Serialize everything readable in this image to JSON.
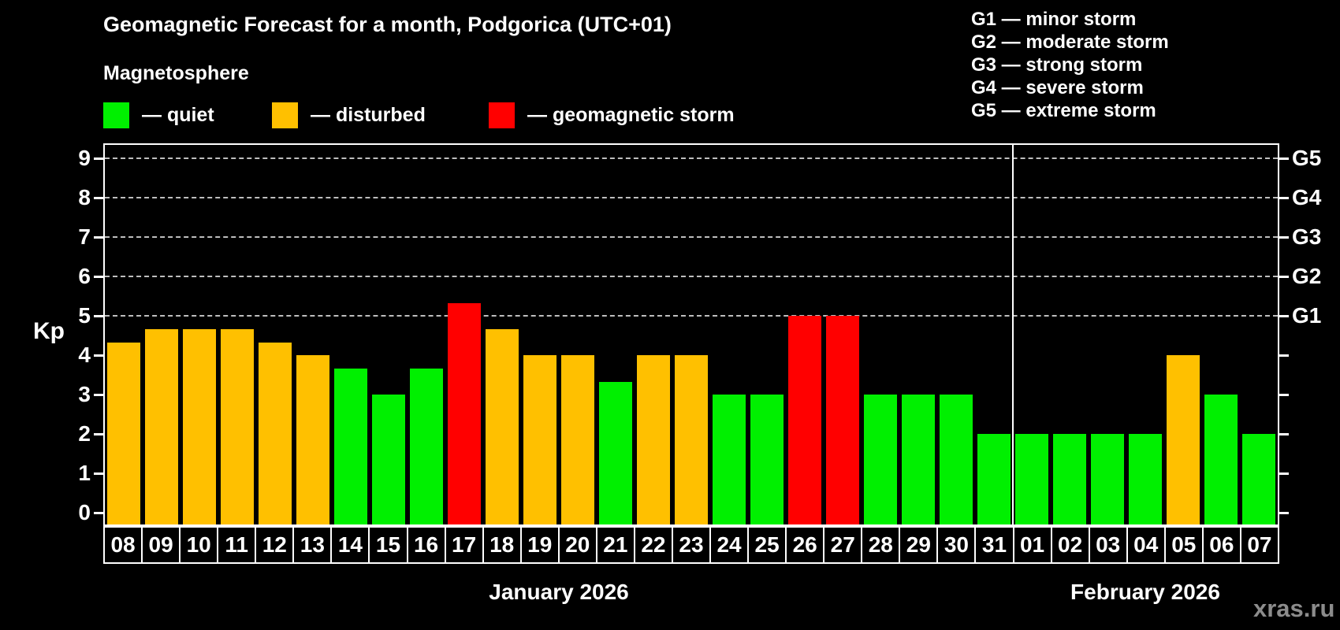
{
  "title": "Geomagnetic Forecast for a month, Podgorica (UTC+01)",
  "subtitle": "Magnetosphere",
  "kp_axis_label": "Kp",
  "watermark": "xras.ru",
  "colors": {
    "background": "#000000",
    "axis": "#FFFFFF",
    "grid": "#BEBEBE",
    "text": "#FFFFFF",
    "watermark": "#8C8C8C",
    "quiet": "#00F000",
    "disturbed": "#FFC000",
    "storm": "#FF0000"
  },
  "legend": [
    {
      "key": "quiet",
      "label": "— quiet",
      "color": "#00F000"
    },
    {
      "key": "disturbed",
      "label": "— disturbed",
      "color": "#FFC000"
    },
    {
      "key": "storm",
      "label": "— geomagnetic storm",
      "color": "#FF0000"
    }
  ],
  "storm_scale": [
    "G1 — minor storm",
    "G2 — moderate storm",
    "G3 — strong storm",
    "G4 — severe storm",
    "G5 — extreme storm"
  ],
  "chart_data": {
    "type": "bar",
    "ylabel": "Kp",
    "ylim": [
      -0.35,
      9.4
    ],
    "y_ticks": [
      0,
      1,
      2,
      3,
      4,
      5,
      6,
      7,
      8,
      9
    ],
    "grid": {
      "kp_levels": [
        5,
        6,
        7,
        8,
        9
      ],
      "style": "dashed",
      "color": "#BEBEBE"
    },
    "right_axis": [
      {
        "kp": 5,
        "label": "G1"
      },
      {
        "kp": 6,
        "label": "G2"
      },
      {
        "kp": 7,
        "label": "G3"
      },
      {
        "kp": 8,
        "label": "G4"
      },
      {
        "kp": 9,
        "label": "G5"
      }
    ],
    "months": [
      {
        "label": "January 2026",
        "start_index": 0,
        "day_count": 24
      },
      {
        "label": "February 2026",
        "start_index": 24,
        "day_count": 7
      }
    ],
    "bars": [
      {
        "day": "08",
        "month": "January 2026",
        "kp": 4.33,
        "status": "disturbed"
      },
      {
        "day": "09",
        "month": "January 2026",
        "kp": 4.67,
        "status": "disturbed"
      },
      {
        "day": "10",
        "month": "January 2026",
        "kp": 4.67,
        "status": "disturbed"
      },
      {
        "day": "11",
        "month": "January 2026",
        "kp": 4.67,
        "status": "disturbed"
      },
      {
        "day": "12",
        "month": "January 2026",
        "kp": 4.33,
        "status": "disturbed"
      },
      {
        "day": "13",
        "month": "January 2026",
        "kp": 4.0,
        "status": "disturbed"
      },
      {
        "day": "14",
        "month": "January 2026",
        "kp": 3.67,
        "status": "quiet"
      },
      {
        "day": "15",
        "month": "January 2026",
        "kp": 3.0,
        "status": "quiet"
      },
      {
        "day": "16",
        "month": "January 2026",
        "kp": 3.67,
        "status": "quiet"
      },
      {
        "day": "17",
        "month": "January 2026",
        "kp": 5.33,
        "status": "storm"
      },
      {
        "day": "18",
        "month": "January 2026",
        "kp": 4.67,
        "status": "disturbed"
      },
      {
        "day": "19",
        "month": "January 2026",
        "kp": 4.0,
        "status": "disturbed"
      },
      {
        "day": "20",
        "month": "January 2026",
        "kp": 4.0,
        "status": "disturbed"
      },
      {
        "day": "21",
        "month": "January 2026",
        "kp": 3.33,
        "status": "quiet"
      },
      {
        "day": "22",
        "month": "January 2026",
        "kp": 4.0,
        "status": "disturbed"
      },
      {
        "day": "23",
        "month": "January 2026",
        "kp": 4.0,
        "status": "disturbed"
      },
      {
        "day": "24",
        "month": "January 2026",
        "kp": 3.0,
        "status": "quiet"
      },
      {
        "day": "25",
        "month": "January 2026",
        "kp": 3.0,
        "status": "quiet"
      },
      {
        "day": "26",
        "month": "January 2026",
        "kp": 5.0,
        "status": "storm"
      },
      {
        "day": "27",
        "month": "January 2026",
        "kp": 5.0,
        "status": "storm"
      },
      {
        "day": "28",
        "month": "January 2026",
        "kp": 3.0,
        "status": "quiet"
      },
      {
        "day": "29",
        "month": "January 2026",
        "kp": 3.0,
        "status": "quiet"
      },
      {
        "day": "30",
        "month": "January 2026",
        "kp": 3.0,
        "status": "quiet"
      },
      {
        "day": "31",
        "month": "January 2026",
        "kp": 2.0,
        "status": "quiet"
      },
      {
        "day": "01",
        "month": "February 2026",
        "kp": 2.0,
        "status": "quiet"
      },
      {
        "day": "02",
        "month": "February 2026",
        "kp": 2.0,
        "status": "quiet"
      },
      {
        "day": "03",
        "month": "February 2026",
        "kp": 2.0,
        "status": "quiet"
      },
      {
        "day": "04",
        "month": "February 2026",
        "kp": 2.0,
        "status": "quiet"
      },
      {
        "day": "05",
        "month": "February 2026",
        "kp": 4.0,
        "status": "disturbed"
      },
      {
        "day": "06",
        "month": "February 2026",
        "kp": 3.0,
        "status": "quiet"
      },
      {
        "day": "07",
        "month": "February 2026",
        "kp": 2.0,
        "status": "quiet"
      }
    ]
  }
}
